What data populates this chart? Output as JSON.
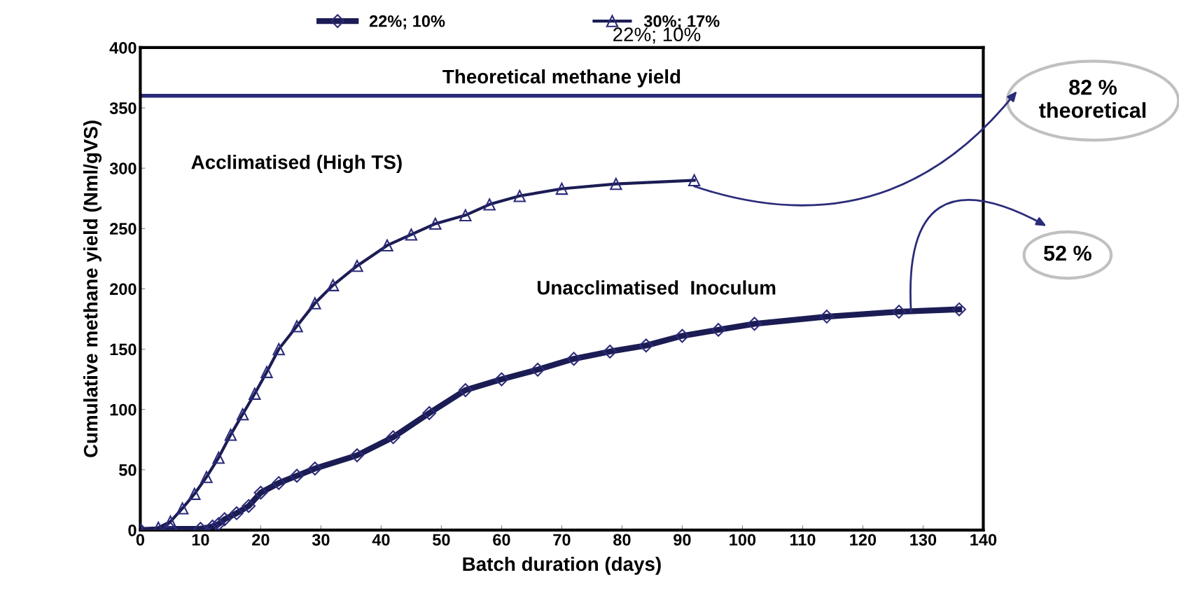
{
  "chart_data": {
    "type": "line",
    "xlabel": "Batch duration (days)",
    "ylabel": "Cumulative methane yield (Nml/gVS)",
    "xlim": [
      0,
      140
    ],
    "xticks": [
      0,
      10,
      20,
      30,
      40,
      50,
      60,
      70,
      80,
      90,
      100,
      110,
      120,
      130,
      140
    ],
    "ylim": [
      0,
      400
    ],
    "yticks": [
      0,
      50,
      100,
      150,
      200,
      250,
      300,
      350,
      400
    ],
    "grid": false,
    "legend": "top",
    "series": [
      {
        "name": "22%; 10%",
        "color": "#1c1c54",
        "marker": "diamond",
        "x": [
          0,
          5,
          10,
          12,
          13,
          14,
          16,
          18,
          20,
          23,
          26,
          29,
          36,
          42,
          48,
          54,
          60,
          66,
          72,
          78,
          84,
          90,
          96,
          102,
          114,
          126,
          136
        ],
        "values": [
          0,
          1,
          1,
          3,
          5,
          9,
          14,
          20,
          31,
          39,
          45,
          51,
          62,
          77,
          97,
          116,
          125,
          133,
          142,
          148,
          153,
          161,
          166,
          171,
          177,
          181,
          183
        ]
      },
      {
        "name": "30%; 17%",
        "color": "#1c1c54",
        "marker": "triangle",
        "x": [
          0,
          3,
          5,
          7,
          9,
          11,
          13,
          15,
          17,
          19,
          21,
          23,
          26,
          29,
          32,
          36,
          41,
          45,
          49,
          54,
          58,
          63,
          70,
          79,
          92
        ],
        "values": [
          0,
          2,
          7,
          18,
          30,
          44,
          60,
          79,
          96,
          113,
          131,
          150,
          169,
          188,
          203,
          219,
          236,
          245,
          254,
          261,
          270,
          277,
          283,
          287,
          290
        ]
      }
    ],
    "ref_lines": [
      {
        "axis": "y",
        "value": 360,
        "label": "Theoretical methane yield",
        "color": "#2b2b7a"
      }
    ],
    "annotations": [
      "22%; 10%",
      "Acclimatised (High TS)",
      "Unacclimatised  Inoculum",
      {
        "text": "82 %\ntheoretical",
        "x": 92,
        "y": 285
      },
      {
        "text": "52 %",
        "x": 128,
        "y": 181
      }
    ]
  }
}
